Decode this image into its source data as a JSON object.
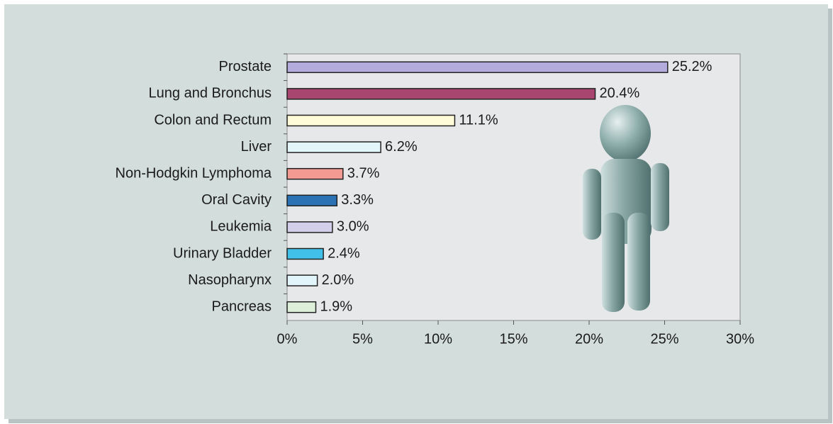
{
  "chart_data": {
    "type": "bar",
    "horizontal": true,
    "categories": [
      "Prostate",
      "Lung and Bronchus",
      "Colon and Rectum",
      "Liver",
      "Non-Hodgkin Lymphoma",
      "Oral Cavity",
      "Leukemia",
      "Urinary Bladder",
      "Nasopharynx",
      "Pancreas"
    ],
    "values": [
      25.2,
      20.4,
      11.1,
      6.2,
      3.7,
      3.3,
      3.0,
      2.4,
      2.0,
      1.9
    ],
    "value_labels": [
      "25.2%",
      "20.4%",
      "11.1%",
      "6.2%",
      "3.7%",
      "3.3%",
      "3.0%",
      "2.4%",
      "2.0%",
      "1.9%"
    ],
    "colors": [
      "#b3acdc",
      "#a8466f",
      "#fffbd9",
      "#e2f5f9",
      "#f39a93",
      "#2a72b3",
      "#d3cfea",
      "#41c1ea",
      "#e2f5fa",
      "#ddefd8"
    ],
    "xlim": [
      0,
      30
    ],
    "xticks": [
      {
        "value": 0,
        "label": "0%"
      },
      {
        "value": 5,
        "label": "5%"
      },
      {
        "value": 10,
        "label": "10%"
      },
      {
        "value": 15,
        "label": "15%"
      },
      {
        "value": 20,
        "label": "20%"
      },
      {
        "value": 25,
        "label": "25%"
      },
      {
        "value": 30,
        "label": "30%"
      }
    ],
    "grid": false
  }
}
